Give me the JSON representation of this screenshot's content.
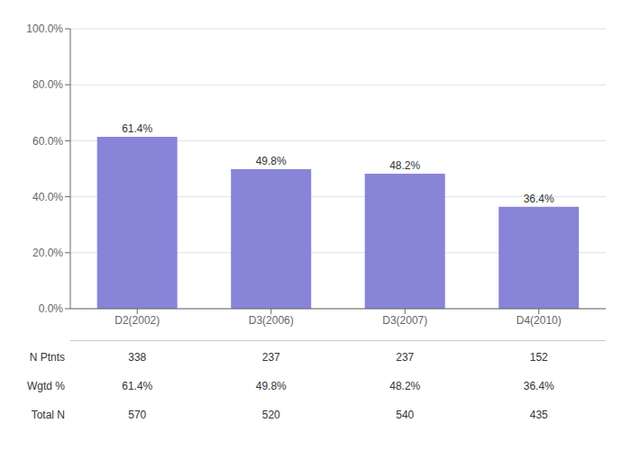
{
  "chart_data": {
    "type": "bar",
    "categories": [
      "D2(2002)",
      "D3(2006)",
      "D3(2007)",
      "D4(2010)"
    ],
    "values": [
      61.4,
      49.8,
      48.2,
      36.4
    ],
    "value_labels": [
      "61.4%",
      "49.8%",
      "48.2%",
      "36.4%"
    ],
    "data_labels": true,
    "color": "#8884d8",
    "ylim": [
      0,
      100
    ],
    "yticks": [
      {
        "value": 0,
        "label": "0.0%"
      },
      {
        "value": 20,
        "label": "20.0%"
      },
      {
        "value": 40,
        "label": "40.0%"
      },
      {
        "value": 60,
        "label": "60.0%"
      },
      {
        "value": 80,
        "label": "80.0%"
      },
      {
        "value": 100,
        "label": "100.0%"
      }
    ],
    "grid": true,
    "table": [
      {
        "label": "N Ptnts",
        "values": [
          338,
          237,
          237,
          152
        ]
      },
      {
        "label": "Wgtd %",
        "values": [
          61.4,
          49.8,
          48.2,
          36.4
        ],
        "value_labels": [
          "61.4%",
          "49.8%",
          "48.2%",
          "36.4%"
        ]
      },
      {
        "label": "Total N",
        "values": [
          570,
          520,
          540,
          435
        ]
      }
    ]
  }
}
